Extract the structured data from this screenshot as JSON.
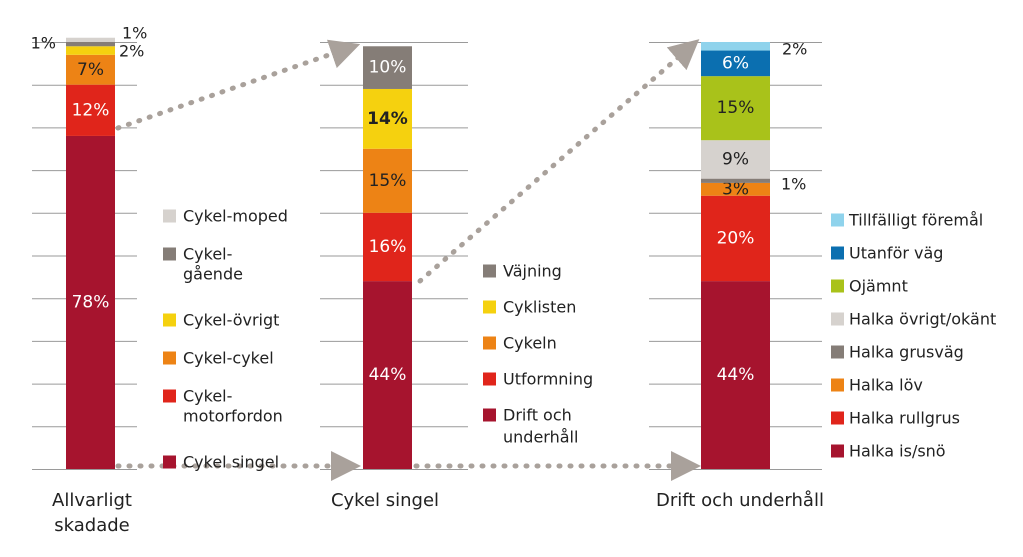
{
  "chart_data": [
    {
      "type": "bar",
      "stacked": true,
      "category": "Allvarligt skadade",
      "category_lines": [
        "Allvarligt",
        "skadade"
      ],
      "ylim": [
        0,
        100
      ],
      "grid": true,
      "series": [
        {
          "name": "Cykel singel",
          "value": 78,
          "label": "78%",
          "color": "#a6142e"
        },
        {
          "name": "Cykel-motorfordon",
          "value": 12,
          "label": "12%",
          "color": "#e0251b"
        },
        {
          "name": "Cykel-cykel",
          "value": 7,
          "label": "7%",
          "color": "#ed8315"
        },
        {
          "name": "Cykel-övrigt",
          "value": 2,
          "label": "2%",
          "color": "#f5d10f"
        },
        {
          "name": "Cykel-gående",
          "value": 1,
          "label": "1%",
          "color": "#857d77"
        },
        {
          "name": "Cykel-moped",
          "value": 1,
          "label": "1%",
          "color": "#d6d2ce"
        }
      ],
      "legend": [
        {
          "lines": [
            "Cykel-moped"
          ],
          "color": "#d6d2ce"
        },
        {
          "lines": [
            "Cykel-",
            "gående"
          ],
          "color": "#857d77"
        },
        {
          "lines": [
            "Cykel-övrigt"
          ],
          "color": "#f5d10f"
        },
        {
          "lines": [
            "Cykel-cykel"
          ],
          "color": "#ed8315"
        },
        {
          "lines": [
            "Cykel-",
            "motorfordon"
          ],
          "color": "#e0251b"
        },
        {
          "lines": [
            "Cykel singel"
          ],
          "color": "#a6142e"
        }
      ]
    },
    {
      "type": "bar",
      "stacked": true,
      "category": "Cykel singel",
      "category_lines": [
        "Cykel singel"
      ],
      "ylim": [
        0,
        100
      ],
      "grid": true,
      "series": [
        {
          "name": "Drift och underhåll",
          "value": 44,
          "label": "44%",
          "color": "#a6142e"
        },
        {
          "name": "Utformning",
          "value": 16,
          "label": "16%",
          "color": "#e0251b"
        },
        {
          "name": "Cykeln",
          "value": 15,
          "label": "15%",
          "color": "#ed8315"
        },
        {
          "name": "Cyklisten",
          "value": 14,
          "label": "14%",
          "color": "#f5d10f"
        },
        {
          "name": "Väjning",
          "value": 10,
          "label": "10%",
          "color": "#857d77"
        }
      ],
      "legend": [
        {
          "lines": [
            "Väjning"
          ],
          "color": "#857d77"
        },
        {
          "lines": [
            "Cyklisten"
          ],
          "color": "#f5d10f"
        },
        {
          "lines": [
            "Cykeln"
          ],
          "color": "#ed8315"
        },
        {
          "lines": [
            "Utformning"
          ],
          "color": "#e0251b"
        },
        {
          "lines": [
            "Drift och",
            "underhåll"
          ],
          "color": "#a6142e"
        }
      ]
    },
    {
      "type": "bar",
      "stacked": true,
      "category": "Drift och underhåll",
      "category_lines": [
        "Drift och underhåll"
      ],
      "ylim": [
        0,
        100
      ],
      "grid": true,
      "series": [
        {
          "name": "Halka is/snö",
          "value": 44,
          "label": "44%",
          "color": "#a6142e"
        },
        {
          "name": "Halka rullgrus",
          "value": 20,
          "label": "20%",
          "color": "#e0251b"
        },
        {
          "name": "Halka löv",
          "value": 3,
          "label": "3%",
          "color": "#ed8315"
        },
        {
          "name": "Halka grusväg",
          "value": 1,
          "label": "1%",
          "color": "#857d77"
        },
        {
          "name": "Halka övrigt/okänt",
          "value": 9,
          "label": "9%",
          "color": "#d6d2ce"
        },
        {
          "name": "Ojämnt",
          "value": 15,
          "label": "15%",
          "color": "#a9c21a"
        },
        {
          "name": "Utanför väg",
          "value": 6,
          "label": "6%",
          "color": "#0b6fb0"
        },
        {
          "name": "Tillfälligt föremål",
          "value": 2,
          "label": "2%",
          "color": "#8fd3ec"
        }
      ],
      "legend": [
        {
          "lines": [
            "Tillfälligt föremål"
          ],
          "color": "#8fd3ec"
        },
        {
          "lines": [
            "Utanför väg"
          ],
          "color": "#0b6fb0"
        },
        {
          "lines": [
            "Ojämnt"
          ],
          "color": "#a9c21a"
        },
        {
          "lines": [
            "Halka övrigt/okänt"
          ],
          "color": "#d6d2ce"
        },
        {
          "lines": [
            "Halka grusväg"
          ],
          "color": "#857d77"
        },
        {
          "lines": [
            "Halka löv"
          ],
          "color": "#ed8315"
        },
        {
          "lines": [
            "Halka rullgrus"
          ],
          "color": "#e0251b"
        },
        {
          "lines": [
            "Halka is/snö"
          ],
          "color": "#a6142e"
        }
      ]
    }
  ]
}
